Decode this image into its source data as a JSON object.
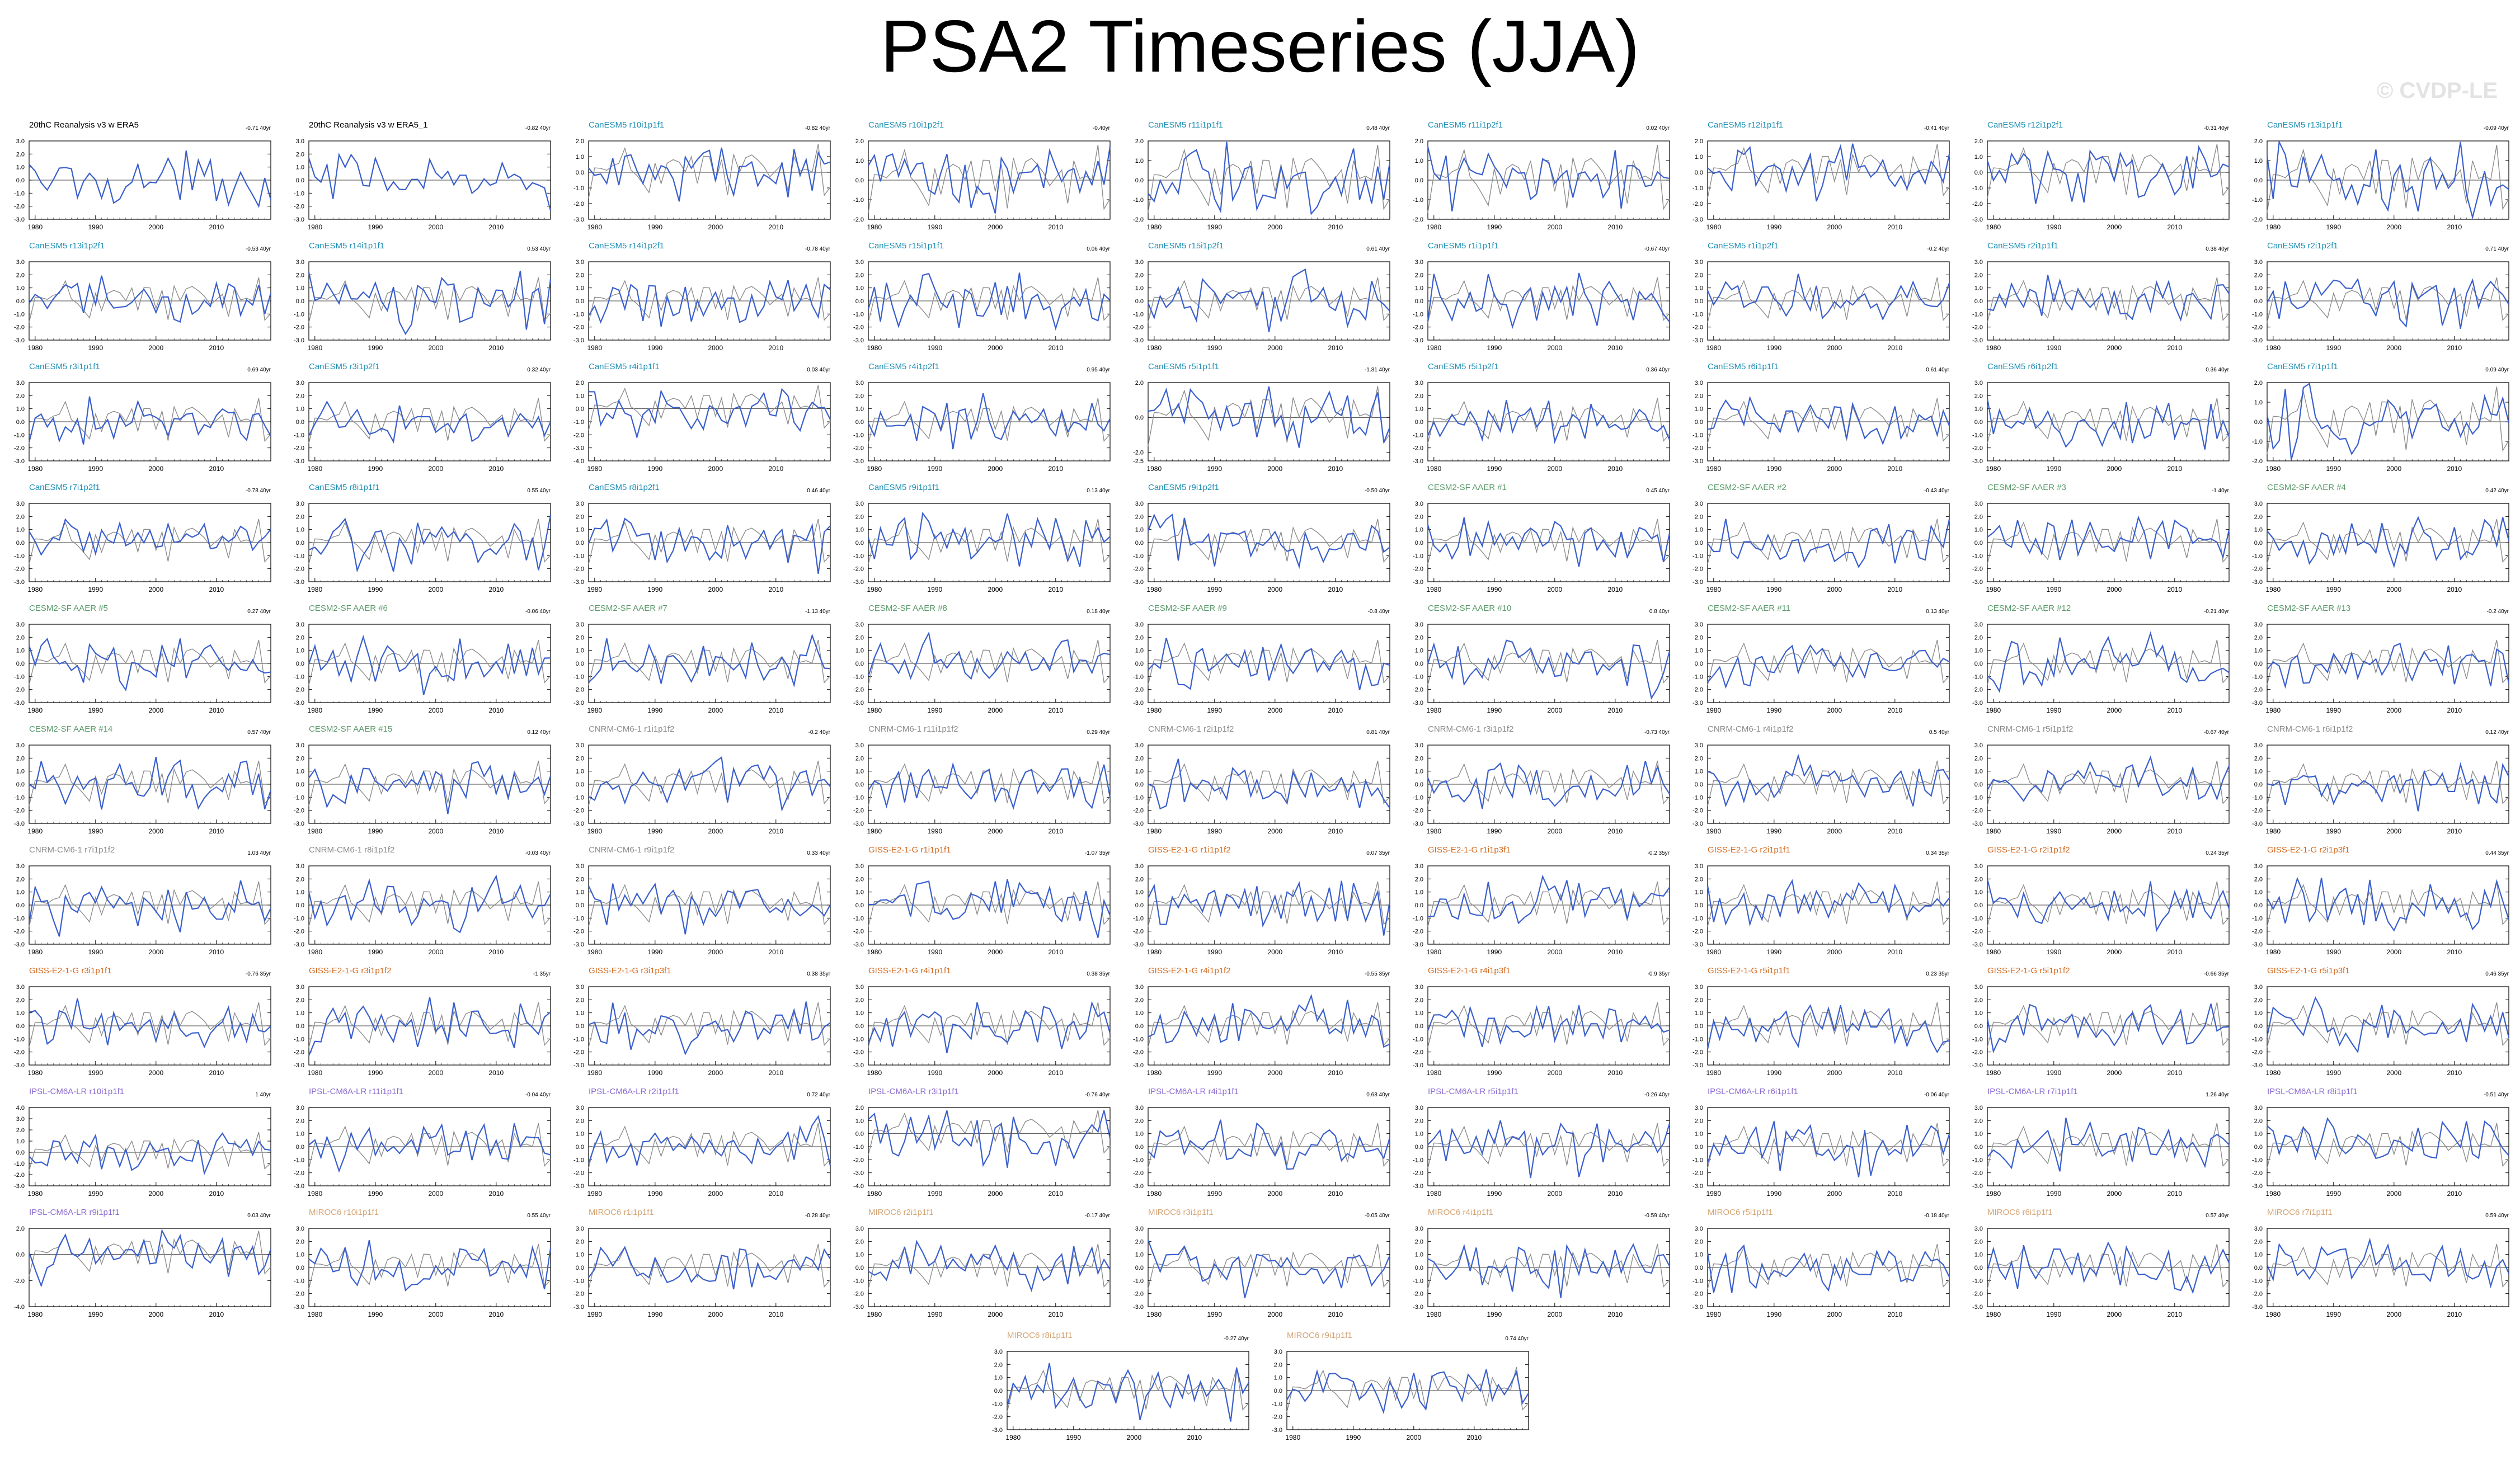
{
  "title": "PSA2 Timeseries (JJA)",
  "watermark": "© CVDP-LE",
  "chart_data": {
    "type": "line",
    "layout": "small-multiples",
    "x_ticks": [
      1980,
      1990,
      2000,
      2010
    ],
    "xlim": [
      1979,
      2019
    ],
    "default_yticks": [
      -3.0,
      -2.0,
      -1.0,
      0.0,
      1.0,
      2.0,
      3.0
    ],
    "series_colors": {
      "model": "#3a5fcd",
      "observed": "#8c8c8c",
      "zero_line": "#000000"
    },
    "panels": [
      {
        "label": "20thC Reanalysis v3 w ERA5",
        "trend": "-0.71 40yr",
        "group": "obs"
      },
      {
        "label": "20thC Reanalysis v3 w ERA5_1",
        "trend": "-0.82 40yr",
        "group": "obs"
      },
      {
        "label": "CanESM5 r10i1p1f1",
        "trend": "-0.82 40yr",
        "group": "canesm",
        "yticks": [
          -3.0,
          -2.0,
          -1.0,
          0.0,
          1.0,
          2.0
        ]
      },
      {
        "label": "CanESM5 r10i1p2f1",
        "trend": "-0.40yr",
        "group": "canesm",
        "yticks": [
          -2.0,
          -1.0,
          0.0,
          1.0,
          2.0
        ]
      },
      {
        "label": "CanESM5 r11i1p1f1",
        "trend": "0.48 40yr",
        "group": "canesm",
        "yticks": [
          -2.0,
          -1.0,
          0.0,
          1.0,
          2.0
        ]
      },
      {
        "label": "CanESM5 r11i1p2f1",
        "trend": "0.02 40yr",
        "group": "canesm",
        "yticks": [
          -2.0,
          -1.0,
          0.0,
          1.0,
          2.0
        ]
      },
      {
        "label": "CanESM5 r12i1p1f1",
        "trend": "-0.41 40yr",
        "group": "canesm",
        "yticks": [
          -3.0,
          -2.0,
          -1.0,
          0.0,
          1.0,
          2.0
        ]
      },
      {
        "label": "CanESM5 r12i1p2f1",
        "trend": "-0.31 40yr",
        "group": "canesm",
        "yticks": [
          -3.0,
          -2.0,
          -1.0,
          0.0,
          1.0,
          2.0
        ]
      },
      {
        "label": "CanESM5 r13i1p1f1",
        "trend": "-0.09 40yr",
        "group": "canesm",
        "yticks": [
          -2.0,
          -1.0,
          0.0,
          1.0,
          2.0
        ]
      },
      {
        "label": "CanESM5 r13i1p2f1",
        "trend": "-0.53 40yr",
        "group": "canesm"
      },
      {
        "label": "CanESM5 r14i1p1f1",
        "trend": "0.53 40yr",
        "group": "canesm"
      },
      {
        "label": "CanESM5 r14i1p2f1",
        "trend": "-0.78 40yr",
        "group": "canesm"
      },
      {
        "label": "CanESM5 r15i1p1f1",
        "trend": "0.06 40yr",
        "group": "canesm"
      },
      {
        "label": "CanESM5 r15i1p2f1",
        "trend": "0.61 40yr",
        "group": "canesm"
      },
      {
        "label": "CanESM5 r1i1p1f1",
        "trend": "-0.67 40yr",
        "group": "canesm"
      },
      {
        "label": "CanESM5 r1i1p2f1",
        "trend": "-0.2 40yr",
        "group": "canesm"
      },
      {
        "label": "CanESM5 r2i1p1f1",
        "trend": "0.38 40yr",
        "group": "canesm"
      },
      {
        "label": "CanESM5 r2i1p2f1",
        "trend": "0.71 40yr",
        "group": "canesm"
      },
      {
        "label": "CanESM5 r3i1p1f1",
        "trend": "0.69 40yr",
        "group": "canesm"
      },
      {
        "label": "CanESM5 r3i1p2f1",
        "trend": "0.32 40yr",
        "group": "canesm"
      },
      {
        "label": "CanESM5 r4i1p1f1",
        "trend": "0.03 40yr",
        "group": "canesm",
        "yticks": [
          -4.0,
          -3.0,
          -2.0,
          -1.0,
          0.0,
          1.0,
          2.0
        ]
      },
      {
        "label": "CanESM5 r4i1p2f1",
        "trend": "0.95 40yr",
        "group": "canesm"
      },
      {
        "label": "CanESM5 r5i1p1f1",
        "trend": "-1.31 40yr",
        "group": "canesm",
        "yticks": [
          -2.5,
          -2.0,
          0.0,
          2.0
        ]
      },
      {
        "label": "CanESM5 r5i1p2f1",
        "trend": "0.36 40yr",
        "group": "canesm"
      },
      {
        "label": "CanESM5 r6i1p1f1",
        "trend": "0.61 40yr",
        "group": "canesm"
      },
      {
        "label": "CanESM5 r6i1p2f1",
        "trend": "0.36 40yr",
        "group": "canesm"
      },
      {
        "label": "CanESM5 r7i1p1f1",
        "trend": "0.09 40yr",
        "group": "canesm",
        "yticks": [
          -2.0,
          -1.0,
          0.0,
          1.0,
          2.0
        ]
      },
      {
        "label": "CanESM5 r7i1p2f1",
        "trend": "-0.78 40yr",
        "group": "canesm"
      },
      {
        "label": "CanESM5 r8i1p1f1",
        "trend": "0.55 40yr",
        "group": "canesm"
      },
      {
        "label": "CanESM5 r8i1p2f1",
        "trend": "0.46 40yr",
        "group": "canesm"
      },
      {
        "label": "CanESM5 r9i1p1f1",
        "trend": "0.13 40yr",
        "group": "canesm"
      },
      {
        "label": "CanESM5 r9i1p2f1",
        "trend": "-0.50 40yr",
        "group": "canesm"
      },
      {
        "label": "CESM2-SF AAER #1",
        "trend": "0.45 40yr",
        "group": "cesm"
      },
      {
        "label": "CESM2-SF AAER #2",
        "trend": "-0.43 40yr",
        "group": "cesm"
      },
      {
        "label": "CESM2-SF AAER #3",
        "trend": "-1 40yr",
        "group": "cesm"
      },
      {
        "label": "CESM2-SF AAER #4",
        "trend": "0.42 40yr",
        "group": "cesm"
      },
      {
        "label": "CESM2-SF AAER #5",
        "trend": "0.27 40yr",
        "group": "cesm"
      },
      {
        "label": "CESM2-SF AAER #6",
        "trend": "-0.06 40yr",
        "group": "cesm"
      },
      {
        "label": "CESM2-SF AAER #7",
        "trend": "-1.13 40yr",
        "group": "cesm"
      },
      {
        "label": "CESM2-SF AAER #8",
        "trend": "0.18 40yr",
        "group": "cesm"
      },
      {
        "label": "CESM2-SF AAER #9",
        "trend": "-0.8 40yr",
        "group": "cesm"
      },
      {
        "label": "CESM2-SF AAER #10",
        "trend": "0.8 40yr",
        "group": "cesm"
      },
      {
        "label": "CESM2-SF AAER #11",
        "trend": "0.13 40yr",
        "group": "cesm"
      },
      {
        "label": "CESM2-SF AAER #12",
        "trend": "-0.21 40yr",
        "group": "cesm"
      },
      {
        "label": "CESM2-SF AAER #13",
        "trend": "-0.2 40yr",
        "group": "cesm"
      },
      {
        "label": "CESM2-SF AAER #14",
        "trend": "0.57 40yr",
        "group": "cesm"
      },
      {
        "label": "CESM2-SF AAER #15",
        "trend": "0.12 40yr",
        "group": "cesm"
      },
      {
        "label": "CNRM-CM6-1 r1i1p1f2",
        "trend": "-0.2 40yr",
        "group": "cnrm"
      },
      {
        "label": "CNRM-CM6-1 r11i1p1f2",
        "trend": "0.29 40yr",
        "group": "cnrm"
      },
      {
        "label": "CNRM-CM6-1 r2i1p1f2",
        "trend": "0.81 40yr",
        "group": "cnrm"
      },
      {
        "label": "CNRM-CM6-1 r3i1p1f2",
        "trend": "-0.73 40yr",
        "group": "cnrm"
      },
      {
        "label": "CNRM-CM6-1 r4i1p1f2",
        "trend": "0.5 40yr",
        "group": "cnrm"
      },
      {
        "label": "CNRM-CM6-1 r5i1p1f2",
        "trend": "-0.67 40yr",
        "group": "cnrm"
      },
      {
        "label": "CNRM-CM6-1 r6i1p1f2",
        "trend": "0.12 40yr",
        "group": "cnrm"
      },
      {
        "label": "CNRM-CM6-1 r7i1p1f2",
        "trend": "1.03 40yr",
        "group": "cnrm"
      },
      {
        "label": "CNRM-CM6-1 r8i1p1f2",
        "trend": "-0.03 40yr",
        "group": "cnrm"
      },
      {
        "label": "CNRM-CM6-1 r9i1p1f2",
        "trend": "0.33 40yr",
        "group": "cnrm"
      },
      {
        "label": "GISS-E2-1-G r1i1p1f1",
        "trend": "-1.07 35yr",
        "group": "giss"
      },
      {
        "label": "GISS-E2-1-G r1i1p1f2",
        "trend": "0.07 35yr",
        "group": "giss"
      },
      {
        "label": "GISS-E2-1-G r1i1p3f1",
        "trend": "-0.2 35yr",
        "group": "giss"
      },
      {
        "label": "GISS-E2-1-G r2i1p1f1",
        "trend": "0.34 35yr",
        "group": "giss"
      },
      {
        "label": "GISS-E2-1-G r2i1p1f2",
        "trend": "0.24 35yr",
        "group": "giss"
      },
      {
        "label": "GISS-E2-1-G r2i1p3f1",
        "trend": "0.44 35yr",
        "group": "giss"
      },
      {
        "label": "GISS-E2-1-G r3i1p1f1",
        "trend": "-0.76 35yr",
        "group": "giss"
      },
      {
        "label": "GISS-E2-1-G r3i1p1f2",
        "trend": "-1 35yr",
        "group": "giss"
      },
      {
        "label": "GISS-E2-1-G r3i1p3f1",
        "trend": "0.38 35yr",
        "group": "giss"
      },
      {
        "label": "GISS-E2-1-G r4i1p1f1",
        "trend": "0.38 35yr",
        "group": "giss"
      },
      {
        "label": "GISS-E2-1-G r4i1p1f2",
        "trend": "-0.55 35yr",
        "group": "giss"
      },
      {
        "label": "GISS-E2-1-G r4i1p3f1",
        "trend": "-0.9 35yr",
        "group": "giss"
      },
      {
        "label": "GISS-E2-1-G r5i1p1f1",
        "trend": "0.23 35yr",
        "group": "giss"
      },
      {
        "label": "GISS-E2-1-G r5i1p1f2",
        "trend": "-0.66 35yr",
        "group": "giss"
      },
      {
        "label": "GISS-E2-1-G r5i1p3f1",
        "trend": "0.46 35yr",
        "group": "giss"
      },
      {
        "label": "IPSL-CM6A-LR r10i1p1f1",
        "trend": "1 40yr",
        "group": "ipsl",
        "yticks": [
          -3.0,
          -2.0,
          -1.0,
          0.0,
          1.0,
          2.0,
          3.0,
          4.0
        ]
      },
      {
        "label": "IPSL-CM6A-LR r11i1p1f1",
        "trend": "-0.04 40yr",
        "group": "ipsl"
      },
      {
        "label": "IPSL-CM6A-LR r2i1p1f1",
        "trend": "0.72 40yr",
        "group": "ipsl"
      },
      {
        "label": "IPSL-CM6A-LR r3i1p1f1",
        "trend": "-0.76 40yr",
        "group": "ipsl",
        "yticks": [
          -4.0,
          -3.0,
          -2.0,
          -1.0,
          0.0,
          1.0,
          2.0
        ]
      },
      {
        "label": "IPSL-CM6A-LR r4i1p1f1",
        "trend": "0.68 40yr",
        "group": "ipsl"
      },
      {
        "label": "IPSL-CM6A-LR r5i1p1f1",
        "trend": "-0.26 40yr",
        "group": "ipsl"
      },
      {
        "label": "IPSL-CM6A-LR r6i1p1f1",
        "trend": "-0.06 40yr",
        "group": "ipsl"
      },
      {
        "label": "IPSL-CM6A-LR r7i1p1f1",
        "trend": "1.26 40yr",
        "group": "ipsl"
      },
      {
        "label": "IPSL-CM6A-LR r8i1p1f1",
        "trend": "-0.51 40yr",
        "group": "ipsl"
      },
      {
        "label": "IPSL-CM6A-LR r9i1p1f1",
        "trend": "0.03 40yr",
        "group": "ipsl",
        "yticks": [
          -4.0,
          -2.0,
          0.0,
          2.0
        ]
      },
      {
        "label": "MIROC6 r10i1p1f1",
        "trend": "0.55 40yr",
        "group": "miroc"
      },
      {
        "label": "MIROC6 r1i1p1f1",
        "trend": "-0.28 40yr",
        "group": "miroc"
      },
      {
        "label": "MIROC6 r2i1p1f1",
        "trend": "-0.17 40yr",
        "group": "miroc"
      },
      {
        "label": "MIROC6 r3i1p1f1",
        "trend": "-0.05 40yr",
        "group": "miroc"
      },
      {
        "label": "MIROC6 r4i1p1f1",
        "trend": "-0.59 40yr",
        "group": "miroc"
      },
      {
        "label": "MIROC6 r5i1p1f1",
        "trend": "-0.18 40yr",
        "group": "miroc"
      },
      {
        "label": "MIROC6 r6i1p1f1",
        "trend": "0.57 40yr",
        "group": "miroc"
      },
      {
        "label": "MIROC6 r7i1p1f1",
        "trend": "0.59 40yr",
        "group": "miroc"
      },
      {
        "label": "MIROC6 r8i1p1f1",
        "trend": "-0.27 40yr",
        "group": "miroc"
      },
      {
        "label": "MIROC6 r9i1p1f1",
        "trend": "0.74 40yr",
        "group": "miroc"
      }
    ]
  },
  "group_colors": {
    "obs": "#000000",
    "canesm": "#1f8fb4",
    "cesm": "#5a9a6a",
    "cnrm": "#8a8a8a",
    "giss": "#d2691e",
    "ipsl": "#8a6bd1",
    "miroc": "#d4a373"
  }
}
